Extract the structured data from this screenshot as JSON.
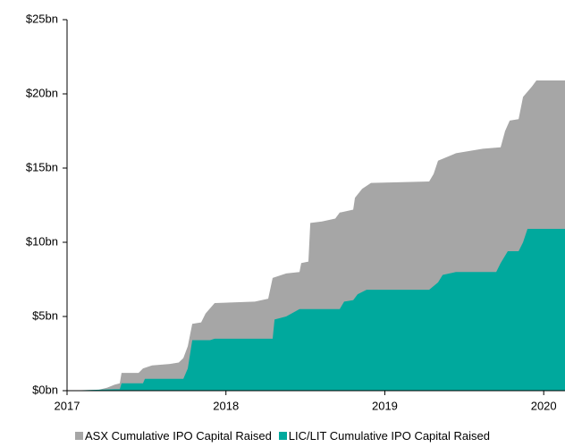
{
  "chart_data": {
    "type": "area",
    "xlim": [
      2017,
      2020.134
    ],
    "xticks": [
      2017,
      2018,
      2019,
      2020
    ],
    "ylim": [
      0,
      25
    ],
    "yticks": [
      {
        "value": 0,
        "label": "$0bn"
      },
      {
        "value": 5,
        "label": "$5bn"
      },
      {
        "value": 10,
        "label": "$10bn"
      },
      {
        "value": 15,
        "label": "$15bn"
      },
      {
        "value": 20,
        "label": "$20bn"
      },
      {
        "value": 25,
        "label": "$25bn"
      }
    ],
    "legend": "bottom",
    "series": [
      {
        "name": "ASX Cumulative IPO Capital Raised",
        "color": "#a6a6a6",
        "x": [
          2017.0,
          2017.197,
          2017.253,
          2017.298,
          2017.332,
          2017.343,
          2017.45,
          2017.478,
          2017.535,
          2017.647,
          2017.703,
          2017.732,
          2017.76,
          2017.788,
          2017.844,
          2017.872,
          2017.929,
          2018.182,
          2018.266,
          2018.294,
          2018.379,
          2018.463,
          2018.474,
          2018.519,
          2018.531,
          2018.604,
          2018.688,
          2018.716,
          2018.801,
          2018.812,
          2018.857,
          2018.913,
          2019.279,
          2019.307,
          2019.335,
          2019.448,
          2019.617,
          2019.729,
          2019.757,
          2019.786,
          2019.842,
          2019.87,
          2019.926,
          2019.954,
          2020.134
        ],
        "values": [
          0,
          0.05,
          0.2,
          0.4,
          0.5,
          1.2,
          1.2,
          1.5,
          1.7,
          1.8,
          1.9,
          2.2,
          3.0,
          4.5,
          4.6,
          5.2,
          5.9,
          6.0,
          6.2,
          7.6,
          7.9,
          8.0,
          8.6,
          8.7,
          11.3,
          11.4,
          11.6,
          12.0,
          12.2,
          13.0,
          13.6,
          14.0,
          14.1,
          14.6,
          15.5,
          16.0,
          16.3,
          16.4,
          17.5,
          18.2,
          18.3,
          19.8,
          20.5,
          20.9,
          20.9
        ]
      },
      {
        "name": "LIC/LIT Cumulative IPO Capital Raised",
        "color": "#00a99d",
        "x": [
          2017.0,
          2017.31,
          2017.332,
          2017.343,
          2017.478,
          2017.49,
          2017.732,
          2017.76,
          2017.788,
          2017.9,
          2017.929,
          2018.294,
          2018.306,
          2018.379,
          2018.463,
          2018.716,
          2018.744,
          2018.801,
          2018.829,
          2018.885,
          2019.279,
          2019.335,
          2019.364,
          2019.448,
          2019.701,
          2019.729,
          2019.774,
          2019.842,
          2019.87,
          2019.898,
          2020.134
        ],
        "values": [
          0,
          0.1,
          0.1,
          0.5,
          0.5,
          0.8,
          0.8,
          1.5,
          3.4,
          3.4,
          3.5,
          3.5,
          4.8,
          5.0,
          5.5,
          5.5,
          6.0,
          6.1,
          6.5,
          6.8,
          6.8,
          7.3,
          7.8,
          8.0,
          8.0,
          8.6,
          9.4,
          9.4,
          10.0,
          10.9,
          10.9
        ]
      }
    ]
  }
}
